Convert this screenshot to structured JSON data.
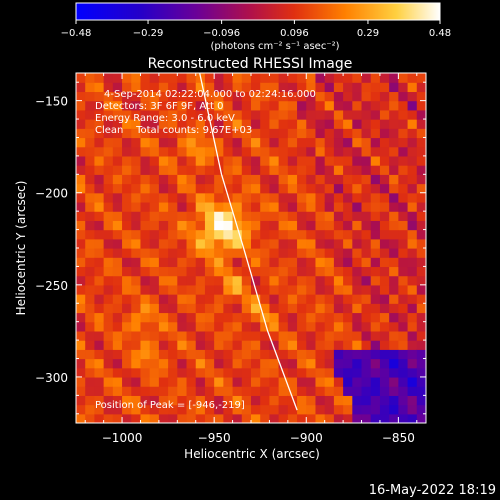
{
  "chart_data": {
    "type": "heatmap",
    "title": "Reconstructed RHESSI Image",
    "xlabel": "Heliocentric X (arcsec)",
    "ylabel": "Heliocentric Y (arcsec)",
    "xlim": [
      -1025,
      -835
    ],
    "ylim": [
      -325,
      -135
    ],
    "x_ticks": [
      {
        "value": -1000,
        "label": "−1000"
      },
      {
        "value": -950,
        "label": "−950"
      },
      {
        "value": -900,
        "label": "−900"
      },
      {
        "value": -850,
        "label": "−850"
      }
    ],
    "y_ticks": [
      {
        "value": -150,
        "label": "−150"
      },
      {
        "value": -200,
        "label": "−200"
      },
      {
        "value": -250,
        "label": "−250"
      },
      {
        "value": -300,
        "label": "−300"
      }
    ],
    "colorbar": {
      "range": [
        -0.48,
        0.48
      ],
      "ticks": [
        {
          "value": -0.48,
          "label": "−0.48"
        },
        {
          "value": -0.29,
          "label": "−0.29"
        },
        {
          "value": -0.096,
          "label": "−0.096"
        },
        {
          "value": 0.096,
          "label": "0.096"
        },
        {
          "value": 0.29,
          "label": "0.29"
        },
        {
          "value": 0.48,
          "label": "0.48"
        }
      ],
      "unit_label": "(photons cm⁻² s⁻¹ asec⁻²)",
      "colors": [
        "#0000ff",
        "#3a00a0",
        "#6000a0",
        "#b00000",
        "#e83000",
        "#ff9000",
        "#ffff80",
        "#ffffff"
      ]
    },
    "annotations": [
      "4-Sep-2014 02:22:04.000 to 02:24:16.000",
      "Detectors: 3F 6F 9F, Att 0",
      "Energy Range: 3.0 - 6.0 keV",
      "Clean    Total counts: 9.67E+03"
    ],
    "peak_label": "Position of Peak = [-946,-219]",
    "peak": {
      "x": -946,
      "y": -219,
      "value": 0.48
    },
    "secondary_sources": [
      {
        "x": -960,
        "y": -177,
        "value": 0.3
      },
      {
        "x": -990,
        "y": -270,
        "value": 0.28
      },
      {
        "x": -925,
        "y": -265,
        "value": 0.26
      },
      {
        "x": -985,
        "y": -288,
        "value": 0.27
      },
      {
        "x": -940,
        "y": -250,
        "value": 0.28
      }
    ],
    "limb_curve": [
      {
        "x": -960,
        "y": -125
      },
      {
        "x": -946,
        "y": -190
      },
      {
        "x": -934,
        "y": -230
      },
      {
        "x": -921,
        "y": -275
      },
      {
        "x": -905,
        "y": -318
      }
    ]
  },
  "footer": {
    "date": "16-May-2022 18:19"
  }
}
